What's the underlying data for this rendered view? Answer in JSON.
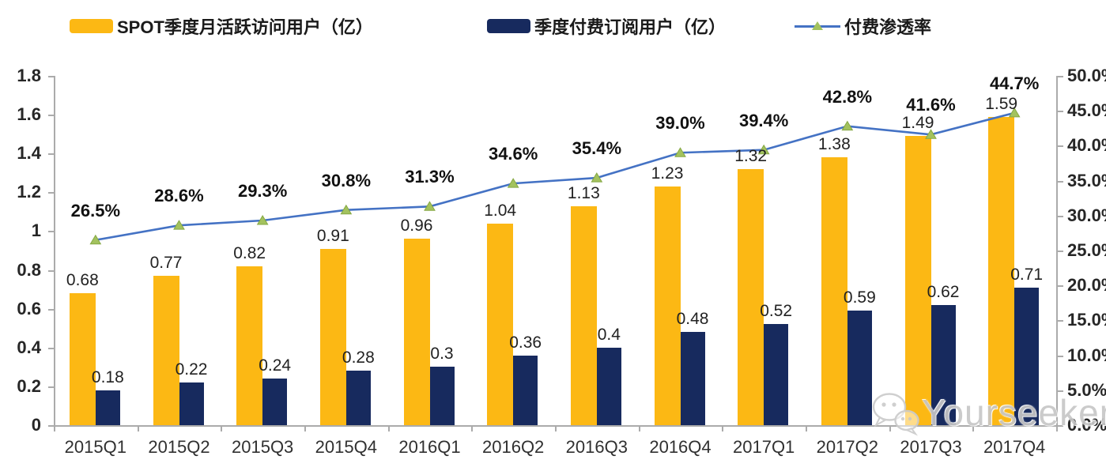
{
  "legend": {
    "items": [
      {
        "label": "SPOT季度月活跃访问用户（亿）",
        "swatch": "yellow-bar",
        "color": "#FCB814"
      },
      {
        "label": "季度付费订阅用户（亿）",
        "swatch": "navy-bar",
        "color": "#172A5E"
      },
      {
        "label": "付费渗透率",
        "swatch": "line-with-triangle-marker",
        "color": "#4472C4",
        "marker_color": "#A3C25E"
      }
    ]
  },
  "chart_data": {
    "type": "combo-bar-line",
    "title": "",
    "categories": [
      "2015Q1",
      "2015Q2",
      "2015Q3",
      "2015Q4",
      "2016Q1",
      "2016Q2",
      "2016Q3",
      "2016Q4",
      "2017Q1",
      "2017Q2",
      "2017Q3",
      "2017Q4"
    ],
    "series": [
      {
        "name": "SPOT季度月活跃访问用户（亿）",
        "type": "bar",
        "axis": "left",
        "color": "#FCB814",
        "values": [
          0.68,
          0.77,
          0.82,
          0.91,
          0.96,
          1.04,
          1.13,
          1.23,
          1.32,
          1.38,
          1.49,
          1.59
        ],
        "labels": [
          "0.68",
          "0.77",
          "0.82",
          "0.91",
          "0.96",
          "1.04",
          "1.13",
          "1.23",
          "1.32",
          "1.38",
          "1.49",
          "1.59"
        ]
      },
      {
        "name": "季度付费订阅用户（亿）",
        "type": "bar",
        "axis": "left",
        "color": "#172A5E",
        "values": [
          0.18,
          0.22,
          0.24,
          0.28,
          0.3,
          0.36,
          0.4,
          0.48,
          0.52,
          0.59,
          0.62,
          0.71
        ],
        "labels": [
          "0.18",
          "0.22",
          "0.24",
          "0.28",
          "0.3",
          "0.36",
          "0.4",
          "0.48",
          "0.52",
          "0.59",
          "0.62",
          "0.71"
        ]
      },
      {
        "name": "付费渗透率",
        "type": "line",
        "axis": "right",
        "color": "#4472C4",
        "marker": "triangle-up",
        "marker_color": "#A3C25E",
        "marker_border_color": "#85A843",
        "values": [
          26.5,
          28.6,
          29.3,
          30.8,
          31.3,
          34.6,
          35.4,
          39.0,
          39.4,
          42.8,
          41.6,
          44.7
        ],
        "labels": [
          "26.5%",
          "28.6%",
          "29.3%",
          "30.8%",
          "31.3%",
          "34.6%",
          "35.4%",
          "39.0%",
          "39.4%",
          "42.8%",
          "41.6%",
          "44.7%"
        ]
      }
    ],
    "left_axis": {
      "min": 0,
      "max": 1.8,
      "ticks": [
        "0",
        "0.2",
        "0.4",
        "0.6",
        "0.8",
        "1",
        "1.2",
        "1.4",
        "1.6",
        "1.8"
      ]
    },
    "right_axis": {
      "min": 0,
      "max": 50,
      "ticks": [
        "0.0%",
        "5.0%",
        "10.0%",
        "15.0%",
        "20.0%",
        "25.0%",
        "30.0%",
        "35.0%",
        "40.0%",
        "45.0%",
        "50.0%"
      ]
    },
    "grid": false,
    "legend_position": "top",
    "axis_color": "#ABABAB"
  },
  "watermark": {
    "text": "Yourseeker",
    "icon": "wechat-icon"
  }
}
